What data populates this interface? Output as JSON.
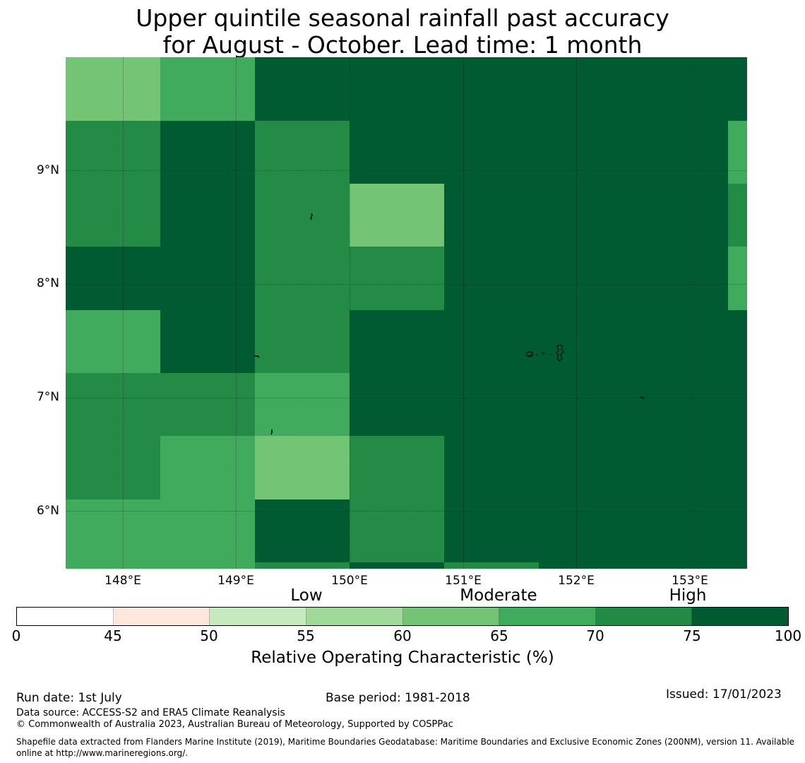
{
  "title": {
    "line1": "Upper quintile seasonal rainfall past accuracy",
    "line2": "for August - October. Lead time: 1 month"
  },
  "map": {
    "lat_ticks": [
      "9°N",
      "8°N",
      "7°N",
      "6°N"
    ],
    "lon_ticks": [
      "148°E",
      "149°E",
      "150°E",
      "151°E",
      "152°E",
      "153°E"
    ],
    "colors": {
      "c60_65": "#74c476",
      "c65_70": "#41ab5d",
      "c70_75": "#238b45",
      "c75_100": "#005a32",
      "coast": "#000000"
    }
  },
  "legend": {
    "categories": [
      "Low",
      "Moderate",
      "High"
    ],
    "ticks": [
      "0",
      "45",
      "50",
      "55",
      "60",
      "65",
      "70",
      "75",
      "100"
    ],
    "segment_colors": [
      "#ffffff",
      "#fee8de",
      "#c7e9c0",
      "#a1d99b",
      "#74c476",
      "#41ab5d",
      "#238b45",
      "#005a32"
    ],
    "label": "Relative Operating Characteristic (%)"
  },
  "footer": {
    "run_date": "Run date: 1st July",
    "base_period": "Base period: 1981-2018",
    "issued": "Issued: 17/01/2023",
    "data_source": "Data source: ACCESS-S2 and ERA5 Climate Reanalysis",
    "copyright": "© Commonwealth of Australia 2023, Australian Bureau of Meteorology, Supported by COSPPac",
    "shapefile_line1": "Shapefile data extracted from Flanders Marine Institute (2019), Maritime Boundaries Geodatabase: Maritime Boundaries and Exclusive Economic Zones (200NM), version 11. Available",
    "shapefile_line2": "online at http://www.marineregions.org/."
  }
}
